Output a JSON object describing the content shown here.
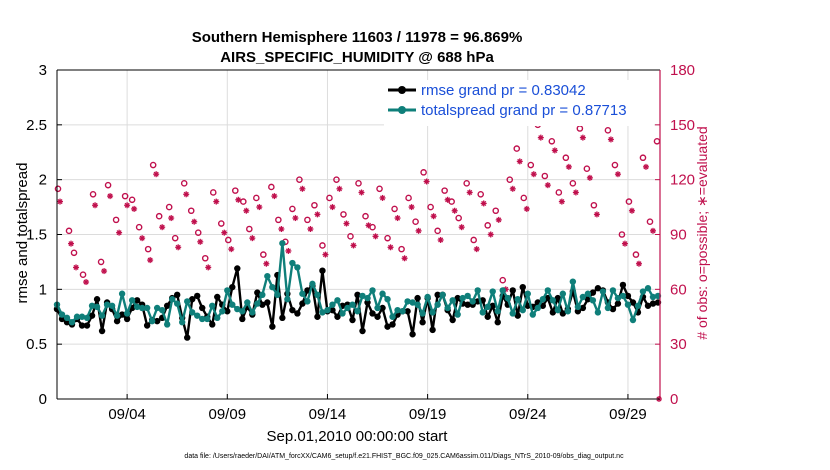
{
  "chart_data": {
    "type": "line",
    "title_line1": "Southern Hemisphere 11603 / 11978 = 96.869%",
    "title_line2": "AIRS_SPECIFIC_HUMIDITY @ 688 hPa",
    "xlabel": "Sep.01,2010 00:00:00 start",
    "ylabel_left": "rmse and totalspread",
    "ylabel_right": "# of obs: o=possible; ∗=evaluated",
    "footnote": "data file: /Users/raeder/DAI/ATM_forcXX/CAM6_setup/f.e21.FHIST_BGC.f09_025.CAM6assim.011/Diags_NTrS_2010-09/obs_diag_output.nc",
    "xlim": [
      0.5,
      30.6
    ],
    "ylim_left": [
      0,
      3
    ],
    "ylim_right": [
      0,
      180
    ],
    "x_ticks": [
      {
        "value": 4,
        "label": "09/04"
      },
      {
        "value": 9,
        "label": "09/09"
      },
      {
        "value": 14,
        "label": "09/14"
      },
      {
        "value": 19,
        "label": "09/19"
      },
      {
        "value": 24,
        "label": "09/24"
      },
      {
        "value": 29,
        "label": "09/29"
      }
    ],
    "y_ticks_left": [
      "0",
      "0.5",
      "1",
      "1.5",
      "2",
      "2.5",
      "3"
    ],
    "y_ticks_right": [
      "0",
      "30",
      "60",
      "90",
      "120",
      "150",
      "180"
    ],
    "legend": [
      {
        "label": "rmse grand pr = 0.83042",
        "color": "#000000"
      },
      {
        "label": "totalspread grand pr = 0.87713",
        "color": "#0f7f7a"
      }
    ],
    "colors": {
      "rmse": "#000000",
      "spread": "#0f7f7a",
      "obs": "#c0104d",
      "grid": "#dcdcdc"
    },
    "x": [
      0.5,
      0.75,
      1.0,
      1.25,
      1.5,
      1.75,
      2.0,
      2.25,
      2.5,
      2.75,
      3.0,
      3.25,
      3.5,
      3.75,
      4.0,
      4.25,
      4.5,
      4.75,
      5.0,
      5.25,
      5.5,
      5.75,
      6.0,
      6.25,
      6.5,
      6.75,
      7.0,
      7.25,
      7.5,
      7.75,
      8.0,
      8.25,
      8.5,
      8.75,
      9.0,
      9.25,
      9.5,
      9.75,
      10.0,
      10.25,
      10.5,
      10.75,
      11.0,
      11.25,
      11.5,
      11.75,
      12.0,
      12.25,
      12.5,
      12.75,
      13.0,
      13.25,
      13.5,
      13.75,
      14.0,
      14.25,
      14.5,
      14.75,
      15.0,
      15.25,
      15.5,
      15.75,
      16.0,
      16.25,
      16.5,
      16.75,
      17.0,
      17.25,
      17.5,
      17.75,
      18.0,
      18.25,
      18.5,
      18.75,
      19.0,
      19.25,
      19.5,
      19.75,
      20.0,
      20.25,
      20.5,
      20.75,
      21.0,
      21.25,
      21.5,
      21.75,
      22.0,
      22.25,
      22.5,
      22.75,
      23.0,
      23.25,
      23.5,
      23.75,
      24.0,
      24.25,
      24.5,
      24.75,
      25.0,
      25.25,
      25.5,
      25.75,
      26.0,
      26.25,
      26.5,
      26.75,
      27.0,
      27.25,
      27.5,
      27.75,
      28.0,
      28.25,
      28.5,
      28.75,
      29.0,
      29.25,
      29.5,
      29.75,
      30.0,
      30.25,
      30.5
    ],
    "series": [
      {
        "name": "rmse",
        "values": [
          0.82,
          0.73,
          0.7,
          0.68,
          0.73,
          0.67,
          0.67,
          0.76,
          0.91,
          0.62,
          0.88,
          0.82,
          0.71,
          0.77,
          0.73,
          0.83,
          0.9,
          0.86,
          0.67,
          0.72,
          0.71,
          0.74,
          0.85,
          0.92,
          0.95,
          0.74,
          0.56,
          0.91,
          0.94,
          0.83,
          0.75,
          0.68,
          0.93,
          0.86,
          0.8,
          1.02,
          1.19,
          0.73,
          0.84,
          0.77,
          0.97,
          0.86,
          0.88,
          0.66,
          1.13,
          0.74,
          0.96,
          0.81,
          0.78,
          0.87,
          0.99,
          1.03,
          0.75,
          1.17,
          0.8,
          0.81,
          0.75,
          0.85,
          0.86,
          0.72,
          0.95,
          0.62,
          0.88,
          0.78,
          0.75,
          0.83,
          0.66,
          0.68,
          0.77,
          0.8,
          0.8,
          0.59,
          0.92,
          0.7,
          0.92,
          0.63,
          0.95,
          0.95,
          0.81,
          0.72,
          0.92,
          0.87,
          0.86,
          0.86,
          0.89,
          0.9,
          0.75,
          0.85,
          0.7,
          0.94,
          0.86,
          0.99,
          0.76,
          1.02,
          0.85,
          0.84,
          0.88,
          0.85,
          0.92,
          0.79,
          0.92,
          0.78,
          0.82,
          0.98,
          0.8,
          0.83,
          0.91,
          0.97,
          1.01,
          0.99,
          0.88,
          0.82,
          0.87,
          1.04,
          0.94,
          0.88,
          0.79,
          0.93,
          0.85,
          0.87,
          0.88
        ]
      },
      {
        "name": "totalspread",
        "values": [
          0.86,
          0.77,
          0.74,
          0.7,
          0.75,
          0.75,
          0.74,
          0.85,
          0.84,
          0.76,
          0.86,
          0.85,
          0.76,
          0.96,
          0.78,
          0.9,
          0.84,
          0.83,
          0.83,
          0.71,
          0.83,
          0.81,
          0.68,
          0.91,
          0.87,
          0.7,
          0.89,
          0.79,
          0.76,
          0.73,
          0.73,
          0.85,
          0.74,
          0.8,
          0.99,
          0.86,
          0.82,
          0.8,
          0.88,
          0.79,
          0.87,
          0.95,
          1.12,
          1.02,
          0.95,
          1.42,
          0.91,
          1.24,
          1.2,
          0.96,
          0.89,
          1.05,
          0.95,
          0.79,
          0.81,
          0.86,
          0.9,
          0.78,
          0.83,
          0.86,
          0.8,
          0.94,
          0.92,
          0.99,
          0.83,
          0.96,
          0.91,
          0.75,
          0.81,
          0.8,
          0.89,
          0.88,
          0.86,
          0.78,
          0.93,
          0.79,
          0.86,
          0.95,
          0.83,
          0.9,
          0.77,
          0.92,
          0.94,
          0.89,
          0.99,
          0.79,
          0.84,
          0.98,
          0.8,
          0.99,
          0.92,
          0.78,
          0.91,
          0.81,
          0.96,
          0.77,
          0.83,
          0.91,
          0.99,
          0.9,
          0.81,
          0.96,
          0.8,
          1.07,
          0.84,
          0.93,
          0.96,
          0.9,
          0.79,
          0.98,
          0.83,
          0.99,
          0.92,
          0.94,
          0.86,
          0.72,
          0.85,
          0.98,
          1.01,
          0.93,
          0.94
        ]
      }
    ],
    "obs_possible": [
      {
        "x": 0.55,
        "v": 115
      },
      {
        "x": 1.1,
        "v": 92
      },
      {
        "x": 1.35,
        "v": 80
      },
      {
        "x": 1.8,
        "v": 68
      },
      {
        "x": 2.3,
        "v": 112
      },
      {
        "x": 2.7,
        "v": 75
      },
      {
        "x": 3.05,
        "v": 117
      },
      {
        "x": 3.45,
        "v": 98
      },
      {
        "x": 3.9,
        "v": 111
      },
      {
        "x": 4.25,
        "v": 109
      },
      {
        "x": 4.6,
        "v": 94
      },
      {
        "x": 5.05,
        "v": 82
      },
      {
        "x": 5.3,
        "v": 128
      },
      {
        "x": 5.6,
        "v": 100
      },
      {
        "x": 6.1,
        "v": 105
      },
      {
        "x": 6.4,
        "v": 88
      },
      {
        "x": 6.85,
        "v": 118
      },
      {
        "x": 7.2,
        "v": 103
      },
      {
        "x": 7.55,
        "v": 91
      },
      {
        "x": 7.9,
        "v": 77
      },
      {
        "x": 8.3,
        "v": 113
      },
      {
        "x": 8.7,
        "v": 96
      },
      {
        "x": 9.05,
        "v": 87
      },
      {
        "x": 9.4,
        "v": 114
      },
      {
        "x": 9.8,
        "v": 108
      },
      {
        "x": 10.1,
        "v": 93
      },
      {
        "x": 10.45,
        "v": 110
      },
      {
        "x": 10.8,
        "v": 79
      },
      {
        "x": 11.2,
        "v": 116
      },
      {
        "x": 11.55,
        "v": 98
      },
      {
        "x": 11.9,
        "v": 86
      },
      {
        "x": 12.25,
        "v": 104
      },
      {
        "x": 12.6,
        "v": 120
      },
      {
        "x": 13.0,
        "v": 98
      },
      {
        "x": 13.35,
        "v": 106
      },
      {
        "x": 13.75,
        "v": 84
      },
      {
        "x": 14.1,
        "v": 110
      },
      {
        "x": 14.45,
        "v": 120
      },
      {
        "x": 14.8,
        "v": 101
      },
      {
        "x": 15.15,
        "v": 89
      },
      {
        "x": 15.55,
        "v": 118
      },
      {
        "x": 15.9,
        "v": 100
      },
      {
        "x": 16.25,
        "v": 94
      },
      {
        "x": 16.6,
        "v": 115
      },
      {
        "x": 17.0,
        "v": 88
      },
      {
        "x": 17.35,
        "v": 104
      },
      {
        "x": 17.7,
        "v": 82
      },
      {
        "x": 18.05,
        "v": 110
      },
      {
        "x": 18.4,
        "v": 97
      },
      {
        "x": 18.8,
        "v": 124
      },
      {
        "x": 19.15,
        "v": 105
      },
      {
        "x": 19.5,
        "v": 92
      },
      {
        "x": 19.85,
        "v": 114
      },
      {
        "x": 20.2,
        "v": 108
      },
      {
        "x": 20.55,
        "v": 99
      },
      {
        "x": 20.95,
        "v": 118
      },
      {
        "x": 21.3,
        "v": 87
      },
      {
        "x": 21.65,
        "v": 112
      },
      {
        "x": 22.0,
        "v": 95
      },
      {
        "x": 22.4,
        "v": 103
      },
      {
        "x": 22.75,
        "v": 65
      },
      {
        "x": 23.1,
        "v": 120
      },
      {
        "x": 23.45,
        "v": 137
      },
      {
        "x": 23.8,
        "v": 110
      },
      {
        "x": 24.15,
        "v": 128
      },
      {
        "x": 24.5,
        "v": 150
      },
      {
        "x": 24.85,
        "v": 122
      },
      {
        "x": 25.2,
        "v": 141
      },
      {
        "x": 25.55,
        "v": 113
      },
      {
        "x": 25.9,
        "v": 132
      },
      {
        "x": 26.25,
        "v": 118
      },
      {
        "x": 26.6,
        "v": 148
      },
      {
        "x": 26.95,
        "v": 126
      },
      {
        "x": 27.3,
        "v": 106
      },
      {
        "x": 27.65,
        "v": 163
      },
      {
        "x": 28.0,
        "v": 147
      },
      {
        "x": 28.35,
        "v": 128
      },
      {
        "x": 28.7,
        "v": 90
      },
      {
        "x": 29.05,
        "v": 108
      },
      {
        "x": 29.4,
        "v": 79
      },
      {
        "x": 29.75,
        "v": 132
      },
      {
        "x": 30.1,
        "v": 97
      },
      {
        "x": 30.45,
        "v": 141
      }
    ],
    "obs_evaluated": [
      {
        "x": 0.65,
        "v": 108
      },
      {
        "x": 1.2,
        "v": 85
      },
      {
        "x": 1.45,
        "v": 72
      },
      {
        "x": 1.95,
        "v": 64
      },
      {
        "x": 2.4,
        "v": 106
      },
      {
        "x": 2.85,
        "v": 70
      },
      {
        "x": 3.15,
        "v": 111
      },
      {
        "x": 3.6,
        "v": 91
      },
      {
        "x": 4.0,
        "v": 106
      },
      {
        "x": 4.35,
        "v": 104
      },
      {
        "x": 4.75,
        "v": 88
      },
      {
        "x": 5.15,
        "v": 76
      },
      {
        "x": 5.45,
        "v": 123
      },
      {
        "x": 5.75,
        "v": 94
      },
      {
        "x": 6.2,
        "v": 99
      },
      {
        "x": 6.55,
        "v": 83
      },
      {
        "x": 6.95,
        "v": 112
      },
      {
        "x": 7.35,
        "v": 97
      },
      {
        "x": 7.65,
        "v": 86
      },
      {
        "x": 8.05,
        "v": 72
      },
      {
        "x": 8.45,
        "v": 108
      },
      {
        "x": 8.85,
        "v": 91
      },
      {
        "x": 9.2,
        "v": 82
      },
      {
        "x": 9.55,
        "v": 109
      },
      {
        "x": 9.95,
        "v": 103
      },
      {
        "x": 10.25,
        "v": 88
      },
      {
        "x": 10.6,
        "v": 105
      },
      {
        "x": 10.95,
        "v": 74
      },
      {
        "x": 11.35,
        "v": 111
      },
      {
        "x": 11.7,
        "v": 93
      },
      {
        "x": 12.05,
        "v": 81
      },
      {
        "x": 12.4,
        "v": 99
      },
      {
        "x": 12.75,
        "v": 115
      },
      {
        "x": 13.15,
        "v": 93
      },
      {
        "x": 13.5,
        "v": 101
      },
      {
        "x": 13.9,
        "v": 79
      },
      {
        "x": 14.25,
        "v": 105
      },
      {
        "x": 14.6,
        "v": 115
      },
      {
        "x": 14.95,
        "v": 96
      },
      {
        "x": 15.3,
        "v": 84
      },
      {
        "x": 15.7,
        "v": 113
      },
      {
        "x": 16.05,
        "v": 95
      },
      {
        "x": 16.4,
        "v": 89
      },
      {
        "x": 16.75,
        "v": 110
      },
      {
        "x": 17.15,
        "v": 83
      },
      {
        "x": 17.5,
        "v": 99
      },
      {
        "x": 17.85,
        "v": 77
      },
      {
        "x": 18.2,
        "v": 105
      },
      {
        "x": 18.55,
        "v": 92
      },
      {
        "x": 18.95,
        "v": 119
      },
      {
        "x": 19.3,
        "v": 100
      },
      {
        "x": 19.65,
        "v": 87
      },
      {
        "x": 20.0,
        "v": 109
      },
      {
        "x": 20.35,
        "v": 103
      },
      {
        "x": 20.7,
        "v": 94
      },
      {
        "x": 21.1,
        "v": 113
      },
      {
        "x": 21.45,
        "v": 82
      },
      {
        "x": 21.8,
        "v": 107
      },
      {
        "x": 22.15,
        "v": 90
      },
      {
        "x": 22.55,
        "v": 98
      },
      {
        "x": 22.9,
        "v": 60
      },
      {
        "x": 23.25,
        "v": 115
      },
      {
        "x": 23.6,
        "v": 130
      },
      {
        "x": 23.95,
        "v": 104
      },
      {
        "x": 24.3,
        "v": 123
      },
      {
        "x": 24.65,
        "v": 143
      },
      {
        "x": 25.0,
        "v": 117
      },
      {
        "x": 25.35,
        "v": 136
      },
      {
        "x": 25.7,
        "v": 108
      },
      {
        "x": 26.05,
        "v": 127
      },
      {
        "x": 26.4,
        "v": 113
      },
      {
        "x": 26.75,
        "v": 143
      },
      {
        "x": 27.1,
        "v": 121
      },
      {
        "x": 27.45,
        "v": 101
      },
      {
        "x": 27.8,
        "v": 158
      },
      {
        "x": 28.15,
        "v": 142
      },
      {
        "x": 28.5,
        "v": 123
      },
      {
        "x": 28.85,
        "v": 85
      },
      {
        "x": 29.2,
        "v": 103
      },
      {
        "x": 29.55,
        "v": 74
      },
      {
        "x": 29.9,
        "v": 127
      },
      {
        "x": 30.25,
        "v": 92
      },
      {
        "x": 30.55,
        "v": 0
      }
    ]
  }
}
